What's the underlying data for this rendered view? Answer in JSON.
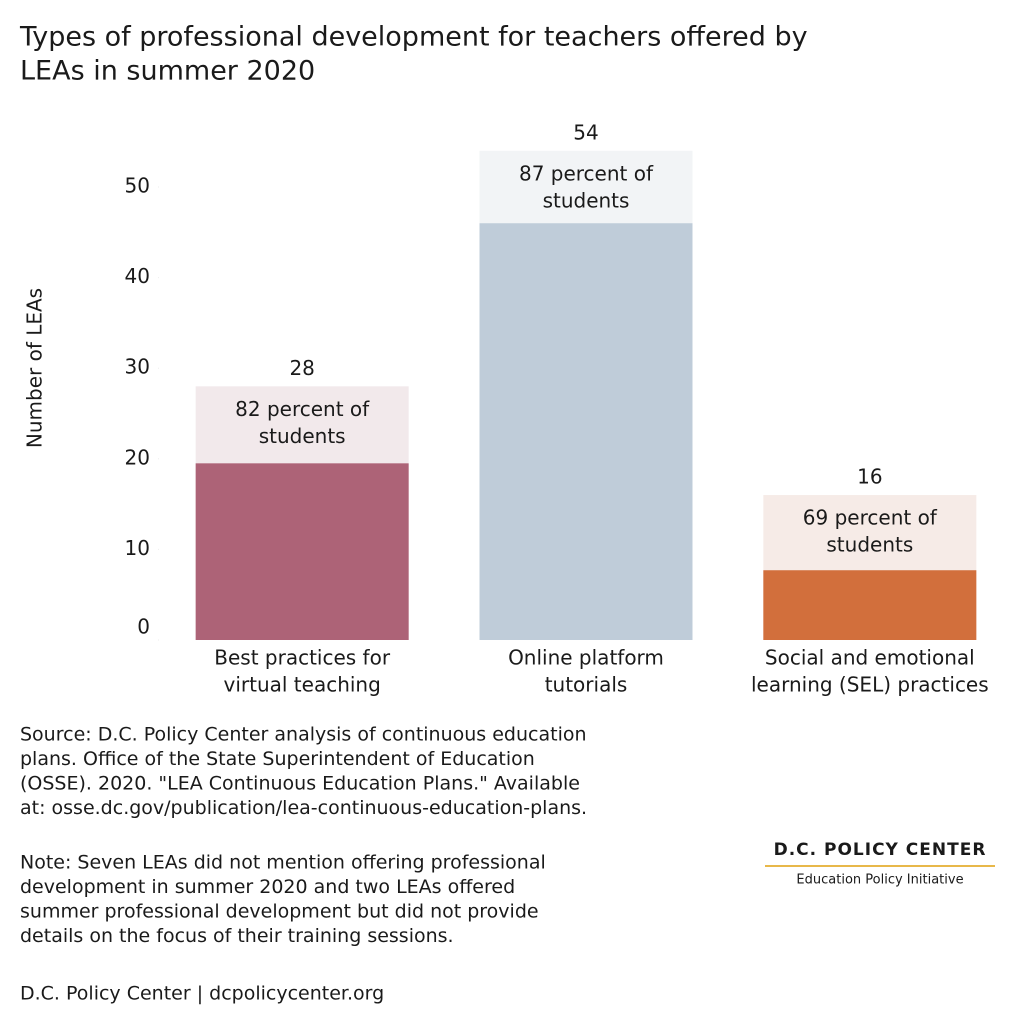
{
  "chart_data": {
    "type": "bar",
    "title": [
      "Types of professional development for teachers offered by",
      "LEAs in summer 2020"
    ],
    "y_label": "Number of LEAs",
    "categories": [
      [
        "Best practices for",
        "virtual teaching"
      ],
      [
        "Online platform",
        "tutorials"
      ],
      [
        "Social and emotional",
        "learning (SEL) practices"
      ]
    ],
    "values": [
      28,
      54,
      16
    ],
    "colors": [
      "#f2e9eb",
      "#f2f4f6",
      "#f6ebe7"
    ],
    "inner_values": [
      19.5,
      46,
      7.7
    ],
    "inner_colors": [
      "#ad6377",
      "#bfccd9",
      "#d26f3c"
    ],
    "annotations": [
      [
        "82 percent of",
        "students"
      ],
      [
        "87 percent of",
        "students"
      ],
      [
        "69 percent of",
        "students"
      ]
    ],
    "ylim": [
      0,
      56
    ],
    "yticks": [
      0,
      10,
      20,
      30,
      40,
      50
    ],
    "source": [
      "Source: D.C. Policy Center analysis of continuous education",
      "plans. Office of the State Superintendent of Education",
      "(OSSE). 2020. \"LEA Continuous Education Plans.\" Available",
      "at: osse.dc.gov/publication/lea-continuous-education-plans."
    ],
    "note": [
      "Note: Seven LEAs did not mention offering professional",
      "development in summer 2020 and two LEAs offered",
      "summer professional development but did not provide",
      "details on the focus of their training sessions."
    ],
    "credit": "D.C. Policy Center | dcpolicycenter.org",
    "logo": [
      "D.C. POLICY CENTER",
      "Education Policy Initiative"
    ]
  }
}
